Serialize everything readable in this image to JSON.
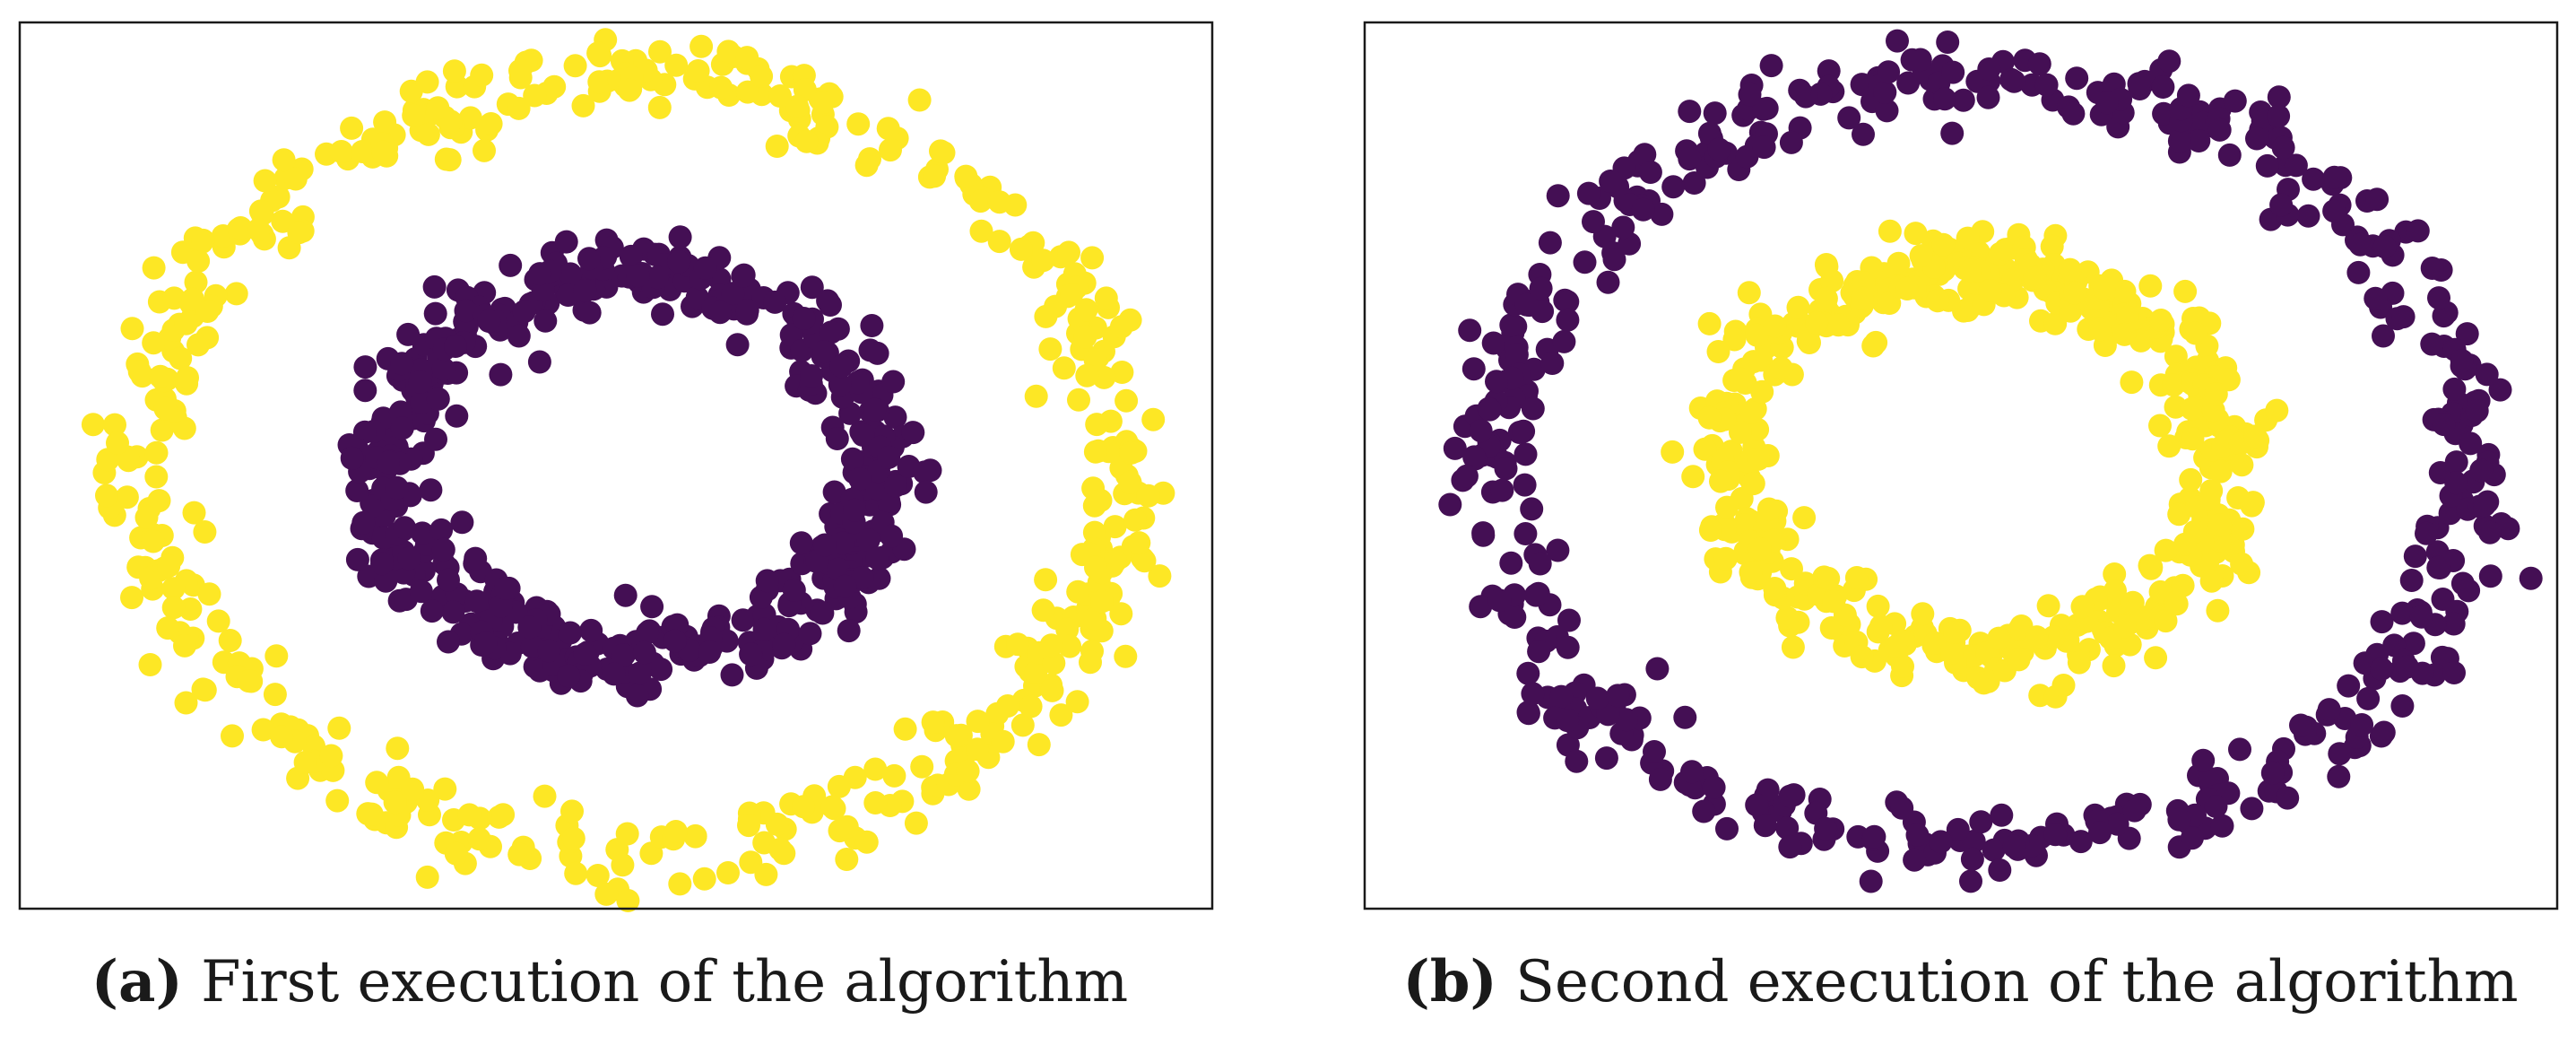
{
  "colors": {
    "inner_first": "#440f54",
    "outer_first": "#fde725",
    "frame": "#1a1a1a",
    "background": "#ffffff"
  },
  "captions": {
    "a_tag": "(a)",
    "a_text": "First execution of the algorithm",
    "b_tag": "(b)",
    "b_text": "Second execution of the algorithm"
  },
  "chart_data": [
    {
      "type": "scatter",
      "title": "",
      "xlabel": "",
      "ylabel": "",
      "axes": "hidden",
      "grid": false,
      "xlim": [
        -1.1,
        1.1
      ],
      "ylim": [
        -1.1,
        1.1
      ],
      "point_count_per_ring": 500,
      "series": [
        {
          "cluster": "inner",
          "color": "#440f54",
          "radius_mean": 0.5,
          "noise": 0.05
        },
        {
          "cluster": "outer",
          "color": "#fde725",
          "radius_mean": 1.0,
          "noise": 0.05
        }
      ]
    },
    {
      "type": "scatter",
      "title": "",
      "xlabel": "",
      "ylabel": "",
      "axes": "hidden",
      "grid": false,
      "xlim": [
        -1.1,
        1.1
      ],
      "ylim": [
        -1.1,
        1.1
      ],
      "point_count_per_ring": 500,
      "series": [
        {
          "cluster": "inner",
          "color": "#fde725",
          "radius_mean": 0.5,
          "noise": 0.05
        },
        {
          "cluster": "outer",
          "color": "#440f54",
          "radius_mean": 1.0,
          "noise": 0.05
        }
      ]
    }
  ]
}
